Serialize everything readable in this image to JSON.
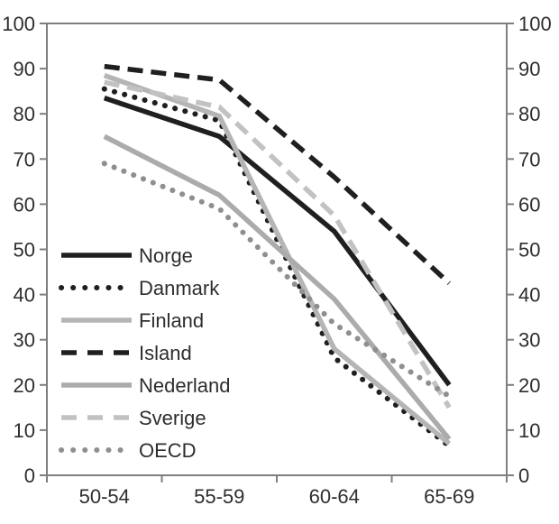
{
  "chart_data": {
    "type": "line",
    "title": "",
    "xlabel": "",
    "ylabel": "",
    "categories": [
      "50-54",
      "55-59",
      "60-64",
      "65-69"
    ],
    "y_axis": {
      "min": 0,
      "max": 100,
      "tick_interval": 10,
      "ticks": [
        0,
        10,
        20,
        30,
        40,
        50,
        60,
        70,
        80,
        90,
        100
      ],
      "labels_on_both_sides": true
    },
    "grid": false,
    "legend_position": "inside-left-lower",
    "series": [
      {
        "name": "Norge",
        "values": [
          83.5,
          75,
          54,
          20
        ],
        "color": "#1f1f1f",
        "style": "solid"
      },
      {
        "name": "Danmark",
        "values": [
          85.5,
          78.5,
          26,
          6.5
        ],
        "color": "#1f1f1f",
        "style": "dotted"
      },
      {
        "name": "Finland",
        "values": [
          88.5,
          79.5,
          28,
          7
        ],
        "color": "#b5b5b5",
        "style": "solid"
      },
      {
        "name": "Island",
        "values": [
          90.5,
          87.5,
          66,
          42.5
        ],
        "color": "#1f1f1f",
        "style": "dashed"
      },
      {
        "name": "Nederland",
        "values": [
          75,
          62,
          39,
          8
        ],
        "color": "#ababab",
        "style": "solid"
      },
      {
        "name": "Sverige",
        "values": [
          87,
          81.5,
          57.5,
          15
        ],
        "color": "#c2c2c2",
        "style": "dashed"
      },
      {
        "name": "OECD",
        "values": [
          69,
          59,
          33.5,
          17.5
        ],
        "color": "#8f8f8f",
        "style": "dotted"
      }
    ],
    "colors": {
      "axis_line": "#7f7f7f",
      "tick_mark": "#7f7f7f",
      "label_text": "#2e2e2e",
      "background": "#ffffff"
    }
  }
}
